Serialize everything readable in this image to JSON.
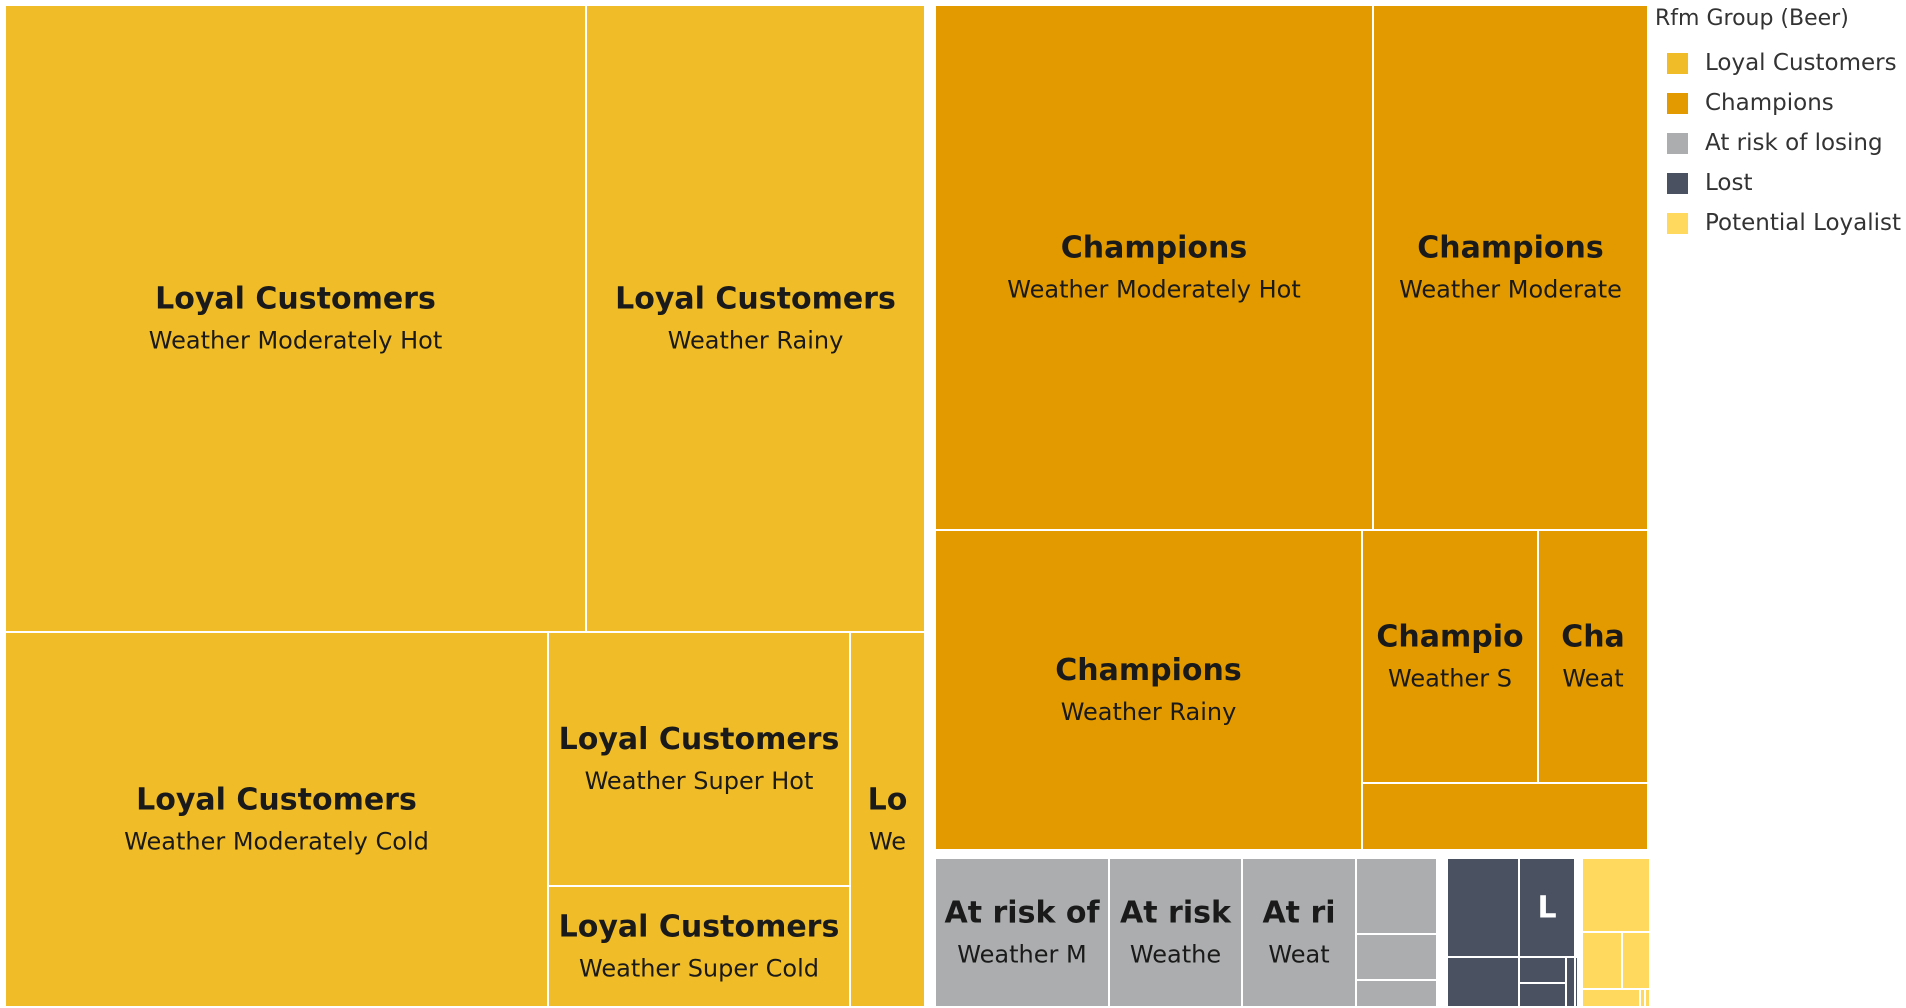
{
  "chart_data": {
    "type": "treemap",
    "legend": {
      "title": "Rfm Group (Beer)",
      "position": "top-right",
      "items": [
        {
          "label": "Loyal Customers",
          "color": "#F0BC27"
        },
        {
          "label": "Champions",
          "color": "#E29A00"
        },
        {
          "label": "At risk of losing",
          "color": "#ABADAE"
        },
        {
          "label": "Lost",
          "color": "#4A5160"
        },
        {
          "label": "Potential Loyalist",
          "color": "#FFD85E"
        }
      ]
    },
    "groups": [
      {
        "name": "Loyal Customers",
        "color": "#F0BC27",
        "cells": [
          {
            "title": "Loyal Customers",
            "subtitle": "Weather Moderately Hot"
          },
          {
            "title": "Loyal Customers",
            "subtitle": "Weather Rainy"
          },
          {
            "title": "Loyal Customers",
            "subtitle": "Weather Moderately Cold"
          },
          {
            "title": "Loyal Customers",
            "subtitle": "Weather Super Hot"
          },
          {
            "title": "Loyal Customers",
            "subtitle": "Weather Super Cold"
          },
          {
            "title": "Lo",
            "subtitle": "We"
          }
        ]
      },
      {
        "name": "Champions",
        "color": "#E29A00",
        "cells": [
          {
            "title": "Champions",
            "subtitle": "Weather Moderately Hot"
          },
          {
            "title": "Champions",
            "subtitle": "Weather Moderate"
          },
          {
            "title": "Champions",
            "subtitle": "Weather Rainy"
          },
          {
            "title": "Champio",
            "subtitle": "Weather S"
          },
          {
            "title": "Cha",
            "subtitle": "Weat"
          },
          {
            "title": "",
            "subtitle": ""
          }
        ]
      },
      {
        "name": "At risk of losing",
        "color": "#ABADAE",
        "cells": [
          {
            "title": "At risk of",
            "subtitle": "Weather M"
          },
          {
            "title": "At risk",
            "subtitle": "Weathe"
          },
          {
            "title": "At ri",
            "subtitle": "Weat"
          },
          {
            "title": "",
            "subtitle": ""
          },
          {
            "title": "",
            "subtitle": ""
          },
          {
            "title": "",
            "subtitle": ""
          }
        ]
      },
      {
        "name": "Lost",
        "color": "#4A5160",
        "cells": [
          {
            "title": "",
            "subtitle": ""
          },
          {
            "title": "L",
            "subtitle": ""
          },
          {
            "title": "",
            "subtitle": ""
          },
          {
            "title": "",
            "subtitle": ""
          },
          {
            "title": "",
            "subtitle": ""
          },
          {
            "title": "",
            "subtitle": ""
          },
          {
            "title": "",
            "subtitle": ""
          }
        ]
      },
      {
        "name": "Potential Loyalist",
        "color": "#FFD85E",
        "cells": [
          {
            "title": "",
            "subtitle": ""
          },
          {
            "title": "",
            "subtitle": ""
          },
          {
            "title": "",
            "subtitle": ""
          },
          {
            "title": "",
            "subtitle": ""
          },
          {
            "title": "",
            "subtitle": ""
          },
          {
            "title": "",
            "subtitle": ""
          },
          {
            "title": "",
            "subtitle": ""
          }
        ]
      }
    ]
  }
}
